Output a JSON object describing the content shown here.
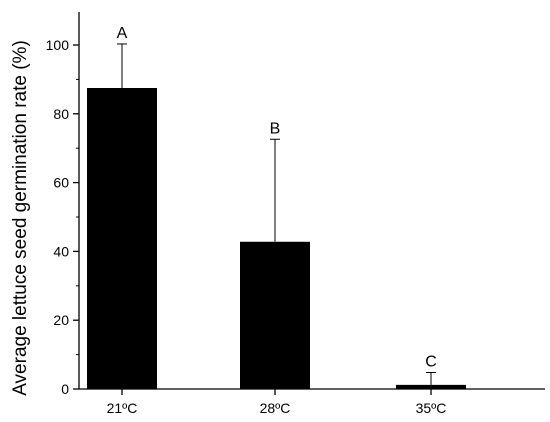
{
  "chart_data": {
    "type": "bar",
    "title": "",
    "xlabel": "",
    "ylabel": "Average lettuce seed germination rate (%)",
    "categories": [
      "21ºC",
      "28ºC",
      "35ºC"
    ],
    "values": [
      87.5,
      42.8,
      1.2
    ],
    "error_upper": [
      100.3,
      72.6,
      4.8
    ],
    "significance_labels": [
      "A",
      "B",
      "C"
    ],
    "ylim": [
      0,
      110
    ],
    "yticks": [
      0,
      20,
      40,
      60,
      80,
      100
    ],
    "grid": false,
    "legend": "none",
    "bar_color": "#000000"
  }
}
